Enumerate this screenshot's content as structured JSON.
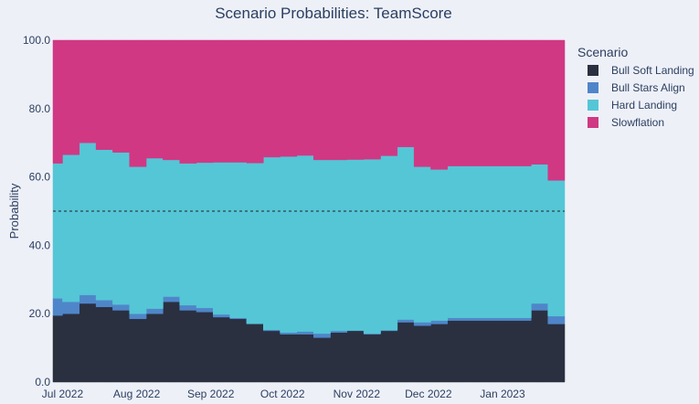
{
  "chart_data": {
    "type": "area",
    "title": "Scenario Probabilities: TeamScore",
    "xlabel": "",
    "ylabel": "Probability",
    "ylim": [
      0,
      100
    ],
    "yticks": [
      "0.0",
      "20.0",
      "40.0",
      "60.0",
      "80.0",
      "100.0"
    ],
    "x_start": "2022-06-27",
    "x_end": "2023-01-27",
    "xticks": [
      {
        "label": "Jul 2022",
        "date": "2022-07-01"
      },
      {
        "label": "Aug 2022",
        "date": "2022-08-01"
      },
      {
        "label": "Sep 2022",
        "date": "2022-09-01"
      },
      {
        "label": "Oct 2022",
        "date": "2022-10-01"
      },
      {
        "label": "Nov 2022",
        "date": "2022-11-01"
      },
      {
        "label": "Dec 2022",
        "date": "2022-12-01"
      },
      {
        "label": "Jan 2023",
        "date": "2023-01-01"
      }
    ],
    "reference_line": {
      "y": 50,
      "style": "dashed"
    },
    "grid": false,
    "legend": {
      "title": "Scenario",
      "position": "right"
    },
    "x": [
      "2022-06-27",
      "2022-07-01",
      "2022-07-08",
      "2022-07-15",
      "2022-07-22",
      "2022-07-29",
      "2022-08-05",
      "2022-08-12",
      "2022-08-19",
      "2022-08-26",
      "2022-09-02",
      "2022-09-09",
      "2022-09-16",
      "2022-09-23",
      "2022-09-30",
      "2022-10-07",
      "2022-10-14",
      "2022-10-21",
      "2022-10-28",
      "2022-11-04",
      "2022-11-11",
      "2022-11-18",
      "2022-11-25",
      "2022-12-02",
      "2022-12-09",
      "2022-12-16",
      "2022-12-23",
      "2022-12-30",
      "2023-01-06",
      "2023-01-13",
      "2023-01-20",
      "2023-01-24"
    ],
    "series": [
      {
        "name": "Bull Soft Landing",
        "color": "#2a3040",
        "values": [
          19.5,
          20,
          23,
          22,
          21,
          18.5,
          20,
          23.5,
          21,
          20.5,
          19,
          18.5,
          17,
          15,
          14,
          14,
          13,
          14.5,
          15,
          14,
          15,
          17.5,
          16.5,
          17,
          18,
          18,
          18,
          18,
          18,
          21,
          17,
          17
        ]
      },
      {
        "name": "Bull Stars Align",
        "color": "#4f86c9",
        "values": [
          5,
          3.5,
          2.5,
          2,
          1.7,
          1.5,
          1.5,
          1.5,
          1.5,
          1.2,
          0.8,
          0.3,
          0.1,
          0.3,
          0.5,
          0.8,
          1.2,
          0.5,
          0.1,
          0.2,
          0.2,
          0.8,
          1,
          1,
          0.8,
          0.8,
          0.8,
          0.8,
          0.8,
          2,
          2.3,
          2.3
        ]
      },
      {
        "name": "Hard Landing",
        "color": "#55c6d6",
        "values": [
          39.5,
          43,
          44.5,
          44,
          44.5,
          43,
          44,
          40,
          41.5,
          42.5,
          44.5,
          45.5,
          47,
          50.5,
          51.5,
          51.5,
          50.8,
          50,
          50,
          51,
          51,
          50.5,
          45.5,
          44.2,
          44.4,
          44.4,
          44.4,
          44.4,
          44.4,
          40.7,
          39.7,
          39.7
        ]
      },
      {
        "name": "Slowflation",
        "color": "#d03884",
        "values": [
          36,
          33.5,
          30,
          32,
          32.8,
          37,
          34.5,
          35,
          36,
          35.8,
          35.7,
          35.7,
          35.9,
          34.2,
          34,
          33.7,
          35,
          35,
          34.9,
          34.8,
          33.8,
          31.2,
          37,
          37.8,
          36.8,
          36.8,
          36.8,
          36.8,
          36.8,
          36.3,
          41,
          41
        ]
      }
    ]
  }
}
